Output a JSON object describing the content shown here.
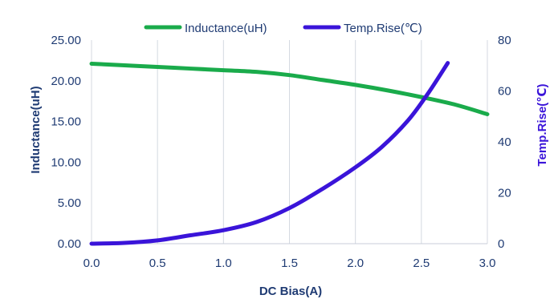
{
  "chart_data": {
    "type": "line",
    "xlabel": "DC Bias(A)",
    "ylabel_left": "Inductance(uH)",
    "ylabel_right": "Temp.Rise(℃)",
    "xlim": [
      0,
      3
    ],
    "ylim_left": [
      0,
      25
    ],
    "ylim_right": [
      0,
      80
    ],
    "x_ticks": [
      0,
      0.5,
      1.0,
      1.5,
      2.0,
      2.5,
      3.0
    ],
    "x_tick_labels": [
      "0.0",
      "0.5",
      "1.0",
      "1.5",
      "2.0",
      "2.5",
      "3.0"
    ],
    "y_left_ticks": [
      0,
      5,
      10,
      15,
      20,
      25
    ],
    "y_left_tick_labels": [
      "0.00",
      "5.00",
      "10.00",
      "15.00",
      "20.00",
      "25.00"
    ],
    "y_right_ticks": [
      0,
      20,
      40,
      60,
      80
    ],
    "y_right_tick_labels": [
      "0",
      "20",
      "40",
      "60",
      "80"
    ],
    "grid": "vertical",
    "legend_position": "top-center",
    "series": [
      {
        "name": "Inductance(uH)",
        "axis": "left",
        "color": "#1aab4b",
        "x": [
          0,
          0.25,
          0.5,
          0.75,
          1.0,
          1.25,
          1.5,
          1.75,
          2.0,
          2.25,
          2.5,
          2.75,
          3.0
        ],
        "y": [
          22.1,
          21.9,
          21.7,
          21.5,
          21.3,
          21.1,
          20.7,
          20.1,
          19.5,
          18.8,
          18.0,
          17.1,
          15.9
        ]
      },
      {
        "name": "Temp.Rise(℃)",
        "axis": "right",
        "color": "#3a14d9",
        "x": [
          0,
          0.25,
          0.5,
          0.75,
          1.0,
          1.25,
          1.5,
          1.75,
          2.0,
          2.2,
          2.4,
          2.55,
          2.7
        ],
        "y": [
          0,
          0.3,
          1.3,
          3.3,
          5.3,
          8.5,
          14.0,
          21.5,
          30.0,
          38.0,
          48.5,
          59.0,
          71.0
        ]
      }
    ]
  }
}
